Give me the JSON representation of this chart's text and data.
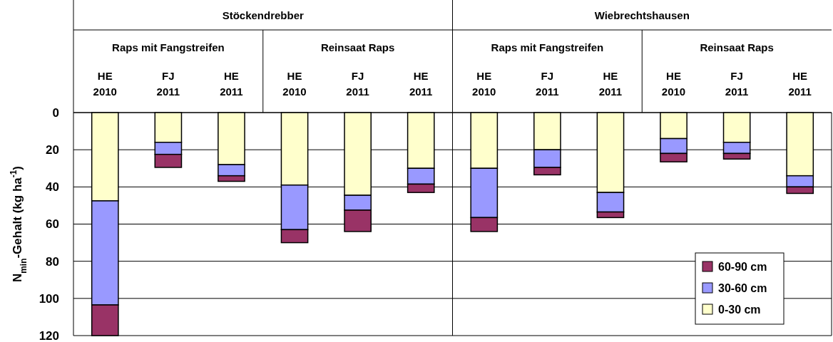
{
  "chart_data": {
    "type": "bar",
    "stacked": true,
    "ylabel": "N$_{min}$-Gehalt (kg ha$^{-1}$)",
    "categories": [
      "HE\n2010",
      "FJ\n2011",
      "HE\n2011",
      "HE\n2010",
      "FJ\n2011",
      "HE\n2011",
      "HE\n2010",
      "FJ\n2011",
      "HE\n2011",
      "HE\n2010",
      "FJ\n2011",
      "HE\n2011"
    ],
    "series": [
      {
        "name": "0-30 cm",
        "color": "#ffffcc",
        "values": [
          47.5,
          16,
          28,
          39,
          44.5,
          30,
          30,
          20,
          43,
          14,
          16,
          34
        ]
      },
      {
        "name": "30-60 cm",
        "color": "#9999ff",
        "values": [
          56,
          6.5,
          6,
          24,
          8,
          8.5,
          26.5,
          9.5,
          10.5,
          8,
          6,
          6
        ]
      },
      {
        "name": "60-90 cm",
        "color": "#993366",
        "values": [
          16.5,
          7,
          3,
          7,
          11.5,
          4.5,
          7.5,
          4,
          3,
          4.5,
          3,
          3.5
        ]
      }
    ],
    "ylim": [
      120,
      0
    ],
    "yticks": [
      0,
      20,
      40,
      60,
      80,
      100,
      120
    ],
    "grid": "y",
    "legend": "bottom right",
    "annotations": [
      "Stöckendrebber",
      "Wiebrechtshausen",
      "Raps mit Fangstreifen",
      "Reinsaat Raps",
      "Raps mit Fangstreifen",
      "Reinsaat Raps"
    ]
  }
}
